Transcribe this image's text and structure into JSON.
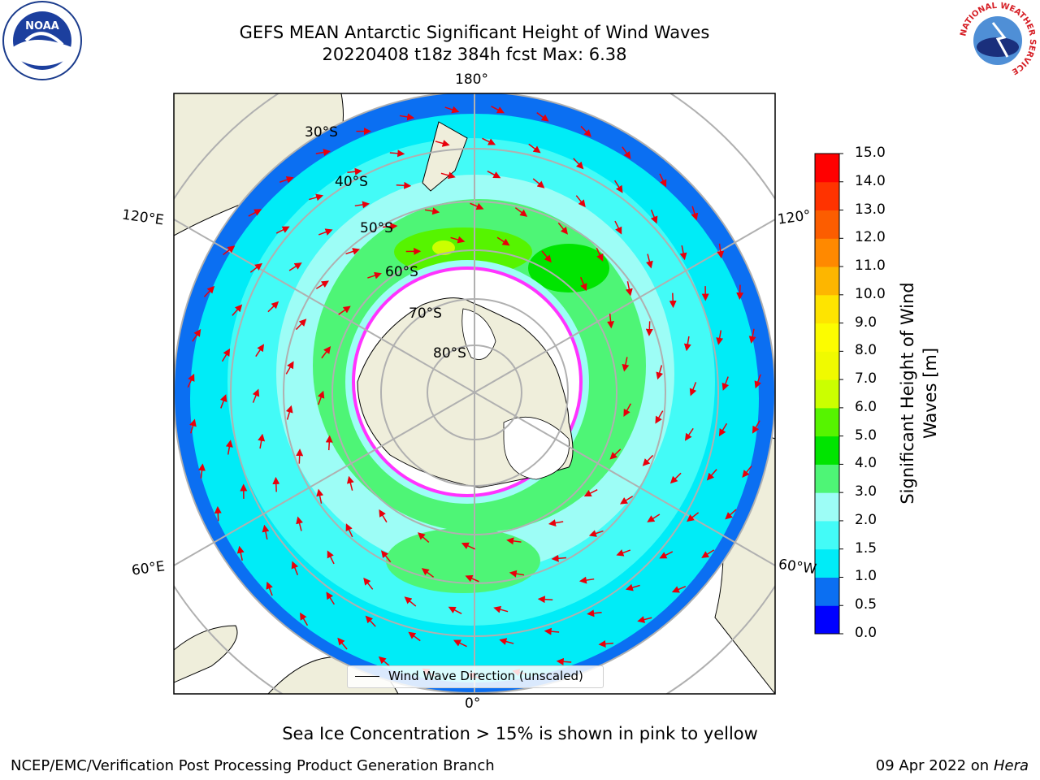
{
  "header": {
    "title_line1": "GEFS MEAN Antarctic Significant Height of Wind Waves",
    "title_line2": "20220408 t18z 384h fcst   Max: 6.38"
  },
  "logos": {
    "left": {
      "text": "NOAA",
      "icon": "noaa-logo-icon"
    },
    "right": {
      "icon": "national-weather-service-logo-icon",
      "ring_text": "NATIONAL WEATHER SERVICE"
    }
  },
  "map": {
    "longitude_labels": {
      "top": "180°",
      "bottom": "0°",
      "upper_left": "120°E",
      "upper_right": "120°",
      "lower_left": "60°E",
      "lower_right": "60°W"
    },
    "latitude_labels": [
      "30°S",
      "40°S",
      "50°S",
      "60°S",
      "70°S",
      "80°S"
    ],
    "legend_label": "Wind Wave Direction (unscaled)",
    "colors": {
      "land": "#efeedb",
      "ice": "#ffffff",
      "arrow": "#e8000b",
      "grid": "#b0b0b0"
    }
  },
  "colorbar": {
    "title": "Significant Height of Wind Waves [m]",
    "title_line1": "Significant Height of Wind",
    "title_line2": "Waves [m]",
    "ticks": [
      "0.0",
      "0.5",
      "1.0",
      "1.5",
      "2.0",
      "3.0",
      "4.0",
      "5.0",
      "6.0",
      "7.0",
      "8.0",
      "9.0",
      "10.0",
      "11.0",
      "12.0",
      "13.0",
      "14.0",
      "15.0"
    ],
    "colors": [
      "#0000ff",
      "#0b6ff2",
      "#00ecf7",
      "#43fbf7",
      "#9dfdf6",
      "#4ef576",
      "#00e400",
      "#56f400",
      "#cbff00",
      "#f0fa00",
      "#fcfc00",
      "#fee400",
      "#fdb600",
      "#ff8900",
      "#fc5d00",
      "#ff3300",
      "#ff0000"
    ]
  },
  "caption": "Sea Ice Concentration > 15% is shown in pink to yellow",
  "footer": {
    "left": "NCEP/EMC/Verification Post Processing Product Generation Branch",
    "right_prefix": "09 Apr 2022 on ",
    "right_system": "Hera"
  }
}
